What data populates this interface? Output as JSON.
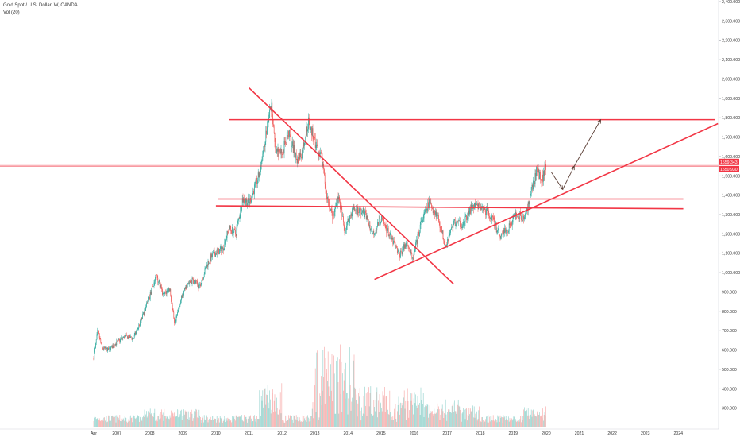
{
  "legend": {
    "symbol_title": "Gold Spot / U.S. Dollar, W, OANDA",
    "volume_title": "Vol (20)"
  },
  "chart_data": {
    "type": "candlestick",
    "title": "Gold Spot / U.S. Dollar, W, OANDA",
    "y_axis": {
      "position": "right",
      "range": [
        200,
        2400
      ],
      "ticks": [
        "2,400.000",
        "2,300.000",
        "2,200.000",
        "2,100.000",
        "2,000.000",
        "1,900.000",
        "1,800.000",
        "1,700.000",
        "1,600.000",
        "1,500.000",
        "1,400.000",
        "1,300.000",
        "1,200.000",
        "1,100.000",
        "1,000.000",
        "900.000",
        "800.000",
        "700.000",
        "600.000",
        "500.000",
        "400.000",
        "300.000"
      ],
      "scale": "linear"
    },
    "x_axis": {
      "ticks": [
        "Apr",
        "2007",
        "2008",
        "2009",
        "2010",
        "2011",
        "2012",
        "2013",
        "2014",
        "2015",
        "2016",
        "2017",
        "2018",
        "2019",
        "2020",
        "2021",
        "2022",
        "2023",
        "2024"
      ],
      "range": [
        2006.3,
        2025.3
      ]
    },
    "price_labels": [
      {
        "value": 1559.343,
        "text": "1559.343",
        "color": "#f23645"
      },
      {
        "value": 1550.93,
        "text": "1550.930",
        "color": "#f23645"
      }
    ],
    "price_path": [
      [
        2006.3,
        560
      ],
      [
        2006.42,
        700
      ],
      [
        2006.55,
        610
      ],
      [
        2006.75,
        600
      ],
      [
        2007.0,
        640
      ],
      [
        2007.25,
        670
      ],
      [
        2007.5,
        660
      ],
      [
        2007.75,
        760
      ],
      [
        2008.0,
        880
      ],
      [
        2008.2,
        990
      ],
      [
        2008.4,
        880
      ],
      [
        2008.6,
        920
      ],
      [
        2008.75,
        720
      ],
      [
        2008.9,
        840
      ],
      [
        2009.1,
        930
      ],
      [
        2009.3,
        960
      ],
      [
        2009.5,
        930
      ],
      [
        2009.75,
        1050
      ],
      [
        2009.95,
        1100
      ],
      [
        2010.2,
        1120
      ],
      [
        2010.4,
        1230
      ],
      [
        2010.6,
        1200
      ],
      [
        2010.8,
        1380
      ],
      [
        2011.0,
        1360
      ],
      [
        2011.3,
        1500
      ],
      [
        2011.55,
        1750
      ],
      [
        2011.68,
        1880
      ],
      [
        2011.8,
        1620
      ],
      [
        2012.0,
        1620
      ],
      [
        2012.2,
        1720
      ],
      [
        2012.45,
        1580
      ],
      [
        2012.6,
        1620
      ],
      [
        2012.8,
        1780
      ],
      [
        2013.0,
        1670
      ],
      [
        2013.2,
        1590
      ],
      [
        2013.35,
        1400
      ],
      [
        2013.55,
        1280
      ],
      [
        2013.7,
        1400
      ],
      [
        2013.9,
        1220
      ],
      [
        2014.15,
        1330
      ],
      [
        2014.5,
        1310
      ],
      [
        2014.75,
        1200
      ],
      [
        2015.0,
        1280
      ],
      [
        2015.3,
        1180
      ],
      [
        2015.55,
        1090
      ],
      [
        2015.8,
        1160
      ],
      [
        2015.95,
        1060
      ],
      [
        2016.2,
        1250
      ],
      [
        2016.45,
        1360
      ],
      [
        2016.7,
        1300
      ],
      [
        2016.95,
        1140
      ],
      [
        2017.2,
        1260
      ],
      [
        2017.5,
        1250
      ],
      [
        2017.75,
        1340
      ],
      [
        2018.0,
        1340
      ],
      [
        2018.3,
        1300
      ],
      [
        2018.6,
        1190
      ],
      [
        2018.85,
        1230
      ],
      [
        2019.1,
        1310
      ],
      [
        2019.35,
        1280
      ],
      [
        2019.55,
        1420
      ],
      [
        2019.72,
        1530
      ],
      [
        2019.88,
        1480
      ],
      [
        2020.0,
        1560
      ]
    ],
    "volume_scale_max": 100,
    "drawings": [
      {
        "kind": "trendline",
        "color": "#f23645",
        "from": [
          2011.0,
          1955
        ],
        "to": [
          2017.2,
          940
        ]
      },
      {
        "kind": "trendline",
        "color": "#f23645",
        "from": [
          2014.8,
          965
        ],
        "to": [
          2025.2,
          1770
        ]
      },
      {
        "kind": "horizontal_line",
        "color": "#f23645",
        "value": 1790,
        "from_x": 2010.4,
        "to_x": 2025.1
      },
      {
        "kind": "horizontal_line",
        "color": "#f23645",
        "value": 1380,
        "from_x": 2010.05,
        "to_x": 2024.15
      },
      {
        "kind": "trendline",
        "color": "#f23645",
        "from": [
          2010.0,
          1345
        ],
        "to": [
          2024.15,
          1330
        ]
      },
      {
        "kind": "horizontal_ray",
        "color": "#f23645",
        "value": 1560,
        "from_x": 2006.0
      },
      {
        "kind": "horizontal_ray",
        "color": "#f23645",
        "value": 1550,
        "from_x": 2006.0
      }
    ],
    "projection_arrows": {
      "color": "#5d4037",
      "points": [
        [
          2020.15,
          1520
        ],
        [
          2020.5,
          1430
        ],
        [
          2020.85,
          1550
        ],
        [
          2021.65,
          1790
        ]
      ]
    }
  }
}
